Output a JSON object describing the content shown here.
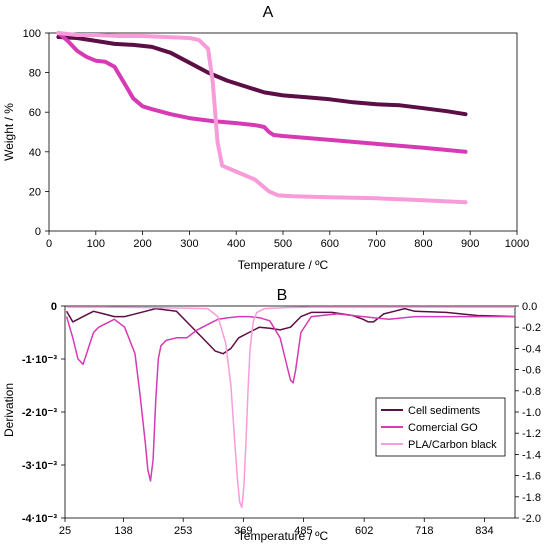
{
  "chart_data": [
    {
      "type": "line",
      "title": "A",
      "xlabel": "Temperature / ºC",
      "ylabel": "Weight / %",
      "xlim": [
        0,
        1000
      ],
      "ylim": [
        0,
        100
      ],
      "xticks": [
        "0",
        "100",
        "200",
        "300",
        "400",
        "500",
        "600",
        "700",
        "800",
        "900",
        "1000"
      ],
      "yticks": [
        "0",
        "20",
        "40",
        "60",
        "80",
        "100"
      ],
      "grid": false,
      "legend": "none",
      "series": [
        {
          "color": "#5c0f45",
          "x": [
            20,
            60,
            100,
            140,
            180,
            220,
            260,
            300,
            340,
            380,
            420,
            460,
            500,
            550,
            600,
            650,
            700,
            750,
            800,
            850,
            890
          ],
          "y": [
            98,
            97.5,
            96,
            94.5,
            94,
            93,
            90,
            85,
            80,
            76,
            73,
            70,
            68.5,
            67.5,
            66.5,
            65,
            64,
            63.5,
            62,
            60.5,
            59
          ]
        },
        {
          "color": "#d63ab5",
          "x": [
            20,
            40,
            60,
            80,
            100,
            120,
            140,
            160,
            180,
            200,
            220,
            260,
            300,
            350,
            400,
            440,
            460,
            470,
            480,
            500,
            600,
            700,
            800,
            890
          ],
          "y": [
            100,
            96,
            91,
            88,
            86,
            85.5,
            83,
            75,
            67,
            63,
            61.5,
            59,
            57,
            55.5,
            54.5,
            53.5,
            52.5,
            50,
            48.5,
            48,
            46,
            44,
            42,
            40
          ]
        },
        {
          "color": "#f79cd9",
          "x": [
            20,
            60,
            100,
            150,
            200,
            250,
            300,
            320,
            340,
            350,
            360,
            370,
            380,
            400,
            440,
            470,
            490,
            520,
            600,
            700,
            800,
            890
          ],
          "y": [
            100,
            99,
            99,
            98.5,
            98.5,
            98,
            97.5,
            96.5,
            92,
            75,
            45,
            33,
            32,
            30,
            26,
            20,
            18,
            17.5,
            17,
            16.5,
            15.5,
            14.5
          ]
        }
      ]
    },
    {
      "type": "line",
      "title": "B",
      "xlabel": "Temperature / ºC",
      "ylabel": "Derivation",
      "y2": true,
      "xlim": [
        25,
        893
      ],
      "ylim": [
        -0.004,
        0
      ],
      "y2lim": [
        -2.0,
        0.0
      ],
      "xticks": [
        "25",
        "138",
        "253",
        "369",
        "485",
        "602",
        "718",
        "834"
      ],
      "yticks": [
        "0",
        "-1·10⁻³",
        "-2·10⁻³",
        "-3·10⁻³",
        "-4·10⁻³"
      ],
      "y2ticks": [
        "0.0",
        "-0.2",
        "-0.4",
        "-0.6",
        "-0.8",
        "-1.0",
        "-1.2",
        "-1.4",
        "-1.6",
        "-1.8",
        "-2.0"
      ],
      "grid": false,
      "legend": "bottom-right",
      "series": [
        {
          "name": "Cell sediments",
          "color": "#5c0f45",
          "x": [
            28,
            40,
            60,
            80,
            100,
            120,
            140,
            180,
            200,
            240,
            260,
            280,
            300,
            315,
            330,
            345,
            360,
            380,
            400,
            420,
            440,
            460,
            480,
            500,
            540,
            580,
            600,
            610,
            620,
            640,
            660,
            680,
            700,
            760,
            820,
            893
          ],
          "y": [
            -0.0001,
            -0.0003,
            -0.0002,
            -0.0001,
            -0.00015,
            -0.0002,
            -0.0002,
            -0.0001,
            -5e-05,
            -0.0001,
            -0.0003,
            -0.0005,
            -0.0007,
            -0.00085,
            -0.0009,
            -0.0008,
            -0.0006,
            -0.0005,
            -0.0004,
            -0.00042,
            -0.00045,
            -0.0004,
            -0.0002,
            -0.00012,
            -0.00012,
            -0.00018,
            -0.00025,
            -0.0003,
            -0.0003,
            -0.00015,
            -0.0001,
            -5e-05,
            -0.0001,
            -0.00012,
            -0.00018,
            -0.0002
          ]
        },
        {
          "name": "Comercial GO",
          "color": "#d63ab5",
          "x": [
            28,
            40,
            50,
            60,
            70,
            80,
            90,
            100,
            110,
            120,
            140,
            160,
            170,
            180,
            185,
            190,
            195,
            200,
            205,
            210,
            220,
            240,
            260,
            280,
            300,
            320,
            340,
            360,
            380,
            400,
            420,
            440,
            450,
            460,
            465,
            470,
            480,
            500,
            550,
            600,
            650,
            700,
            800,
            893
          ],
          "y": [
            -0.0002,
            -0.0006,
            -0.001,
            -0.0011,
            -0.0008,
            -0.0005,
            -0.0004,
            -0.00035,
            -0.0003,
            -0.00025,
            -0.0004,
            -0.0009,
            -0.0017,
            -0.0026,
            -0.0031,
            -0.0033,
            -0.0029,
            -0.0018,
            -0.001,
            -0.00075,
            -0.00065,
            -0.0006,
            -0.0006,
            -0.00045,
            -0.00035,
            -0.00025,
            -0.00022,
            -0.0002,
            -0.0002,
            -0.00022,
            -0.00028,
            -0.0006,
            -0.001,
            -0.0014,
            -0.00145,
            -0.0012,
            -0.0005,
            -0.0002,
            -0.00015,
            -0.0002,
            -0.00025,
            -0.0002,
            -0.0002,
            -0.0002
          ]
        },
        {
          "name": "PLA/Carbon black",
          "color": "#f79cd9",
          "x": [
            28,
            100,
            200,
            300,
            320,
            335,
            345,
            352,
            358,
            362,
            366,
            370,
            374,
            378,
            382,
            388,
            395,
            410,
            450,
            500,
            600,
            700,
            800,
            893
          ],
          "y": [
            -2e-05,
            -2e-05,
            -3e-05,
            -5e-05,
            -0.0002,
            -0.0007,
            -0.0015,
            -0.0025,
            -0.0033,
            -0.0037,
            -0.0038,
            -0.0034,
            -0.0026,
            -0.0016,
            -0.0008,
            -0.0003,
            -0.00012,
            -5e-05,
            -3e-05,
            -2e-05,
            -2e-05,
            -2e-05,
            -2e-05,
            -2e-05
          ]
        }
      ]
    }
  ]
}
